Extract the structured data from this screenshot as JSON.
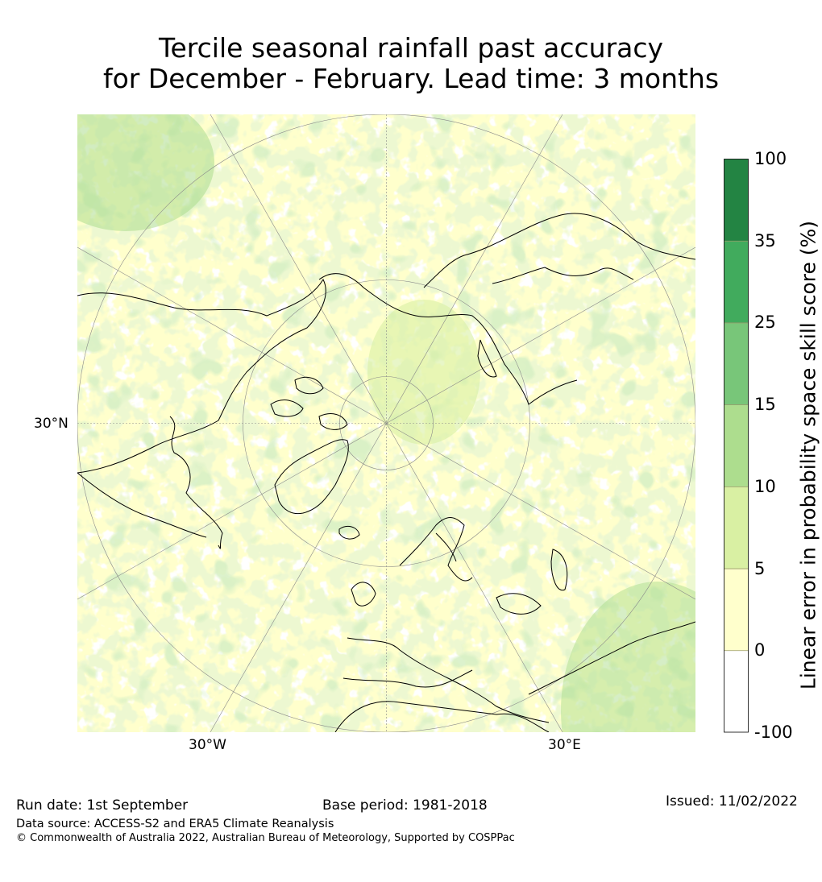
{
  "title": {
    "line1": "Tercile seasonal rainfall past accuracy",
    "line2": "for December - February. Lead time: 3 months"
  },
  "map": {
    "projection": "north-polar-stereographic",
    "latitude_label": "30°N",
    "longitude_labels": [
      "30°W",
      "30°E"
    ],
    "colors": {
      "ocean_white": "#ffffff",
      "land_coast": "#000000",
      "grid": "#8a8a8a"
    }
  },
  "colorbar": {
    "title": "Linear error in probability space skill score (%)",
    "ticks": [
      "100",
      "35",
      "25",
      "15",
      "10",
      "5",
      "0",
      "-100"
    ],
    "bins": [
      {
        "from": "-100",
        "to": "0",
        "color": "#ffffff"
      },
      {
        "from": "0",
        "to": "5",
        "color": "#ffffcc"
      },
      {
        "from": "5",
        "to": "10",
        "color": "#d9f0a3"
      },
      {
        "from": "10",
        "to": "15",
        "color": "#addd8e"
      },
      {
        "from": "15",
        "to": "25",
        "color": "#78c679"
      },
      {
        "from": "25",
        "to": "35",
        "color": "#41ab5d"
      },
      {
        "from": "35",
        "to": "100",
        "color": "#238443"
      }
    ]
  },
  "footer": {
    "run_date": "Run date: 1st September",
    "base_period": "Base period: 1981-2018",
    "issued": "Issued: 11/02/2022",
    "data_source": "Data source: ACCESS-S2 and ERA5 Climate Reanalysis",
    "copyright": "© Commonwealth of Australia 2022, Australian Bureau of Meteorology, Supported by COSPPac"
  }
}
